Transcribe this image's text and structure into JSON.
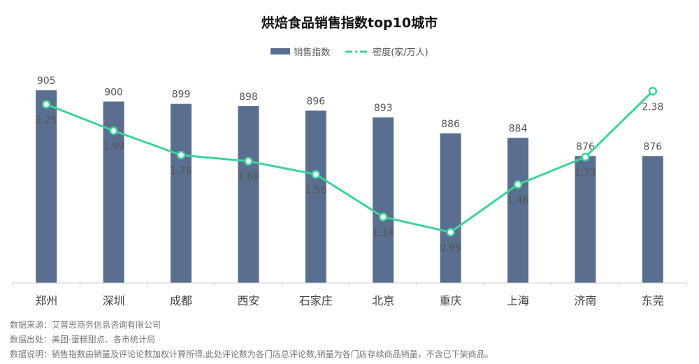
{
  "chart_data": {
    "type": "bar+line",
    "title": "烘焙食品销售指数top10城市",
    "categories": [
      "郑州",
      "深圳",
      "成都",
      "西安",
      "石家庄",
      "北京",
      "重庆",
      "上海",
      "济南",
      "东莞"
    ],
    "series": [
      {
        "name": "销售指数",
        "type": "bar",
        "axis": "left",
        "color": "#5a6e8f",
        "values": [
          905,
          900,
          899,
          898,
          896,
          893,
          886,
          884,
          876,
          876
        ]
      },
      {
        "name": "密度(家/万人)",
        "type": "line",
        "axis": "right",
        "color": "#3dd39b",
        "values": [
          2.25,
          1.99,
          1.75,
          1.69,
          1.56,
          1.14,
          0.99,
          1.46,
          1.73,
          2.38
        ]
      }
    ],
    "ylim_left": [
      820,
      914
    ],
    "ylim_right": [
      0.49,
      2.59
    ],
    "grid": false,
    "legend": "top-center"
  },
  "footer": {
    "source": "数据来源：艾普思商务信息咨询有限公司",
    "origin": "数据出处：美团·蛋糕甜点、各市统计局",
    "note": "数据说明：销售指数由销量及评论论数加权计算所得,此处评论数为各门店总评论数,销量为各门店存续商品销量，不含已下架商品。"
  }
}
